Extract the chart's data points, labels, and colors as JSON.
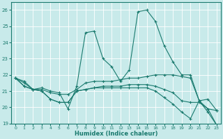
{
  "xlabel": "Humidex (Indice chaleur)",
  "ylabel": "",
  "bg_color": "#c8eaea",
  "line_color": "#1a7a6e",
  "grid_color": "#b0d8d8",
  "xlim": [
    -0.5,
    23.5
  ],
  "ylim": [
    19,
    26.5
  ],
  "yticks": [
    19,
    20,
    21,
    22,
    23,
    24,
    25,
    26
  ],
  "xticks": [
    0,
    1,
    2,
    3,
    4,
    5,
    6,
    7,
    8,
    9,
    10,
    11,
    12,
    13,
    14,
    15,
    16,
    17,
    18,
    19,
    20,
    21,
    22,
    23
  ],
  "lines": [
    {
      "x": [
        0,
        1,
        2,
        3,
        4,
        5,
        6,
        7,
        8,
        9,
        10,
        11,
        12,
        13,
        14,
        15,
        16,
        17,
        18,
        19,
        20,
        21,
        22,
        23
      ],
      "y": [
        21.8,
        21.6,
        21.1,
        21.2,
        21.0,
        20.9,
        19.9,
        21.3,
        24.6,
        24.7,
        23.0,
        22.5,
        21.6,
        22.3,
        25.9,
        26.0,
        25.3,
        23.8,
        22.8,
        22.0,
        22.0,
        20.4,
        19.7,
        18.9
      ]
    },
    {
      "x": [
        0,
        1,
        2,
        3,
        4,
        5,
        6,
        7,
        8,
        9,
        10,
        11,
        12,
        13,
        14,
        15,
        16,
        17,
        18,
        19,
        20,
        21,
        22,
        23
      ],
      "y": [
        21.8,
        21.5,
        21.1,
        21.1,
        20.9,
        20.8,
        20.8,
        21.1,
        21.5,
        21.6,
        21.6,
        21.6,
        21.7,
        21.8,
        21.8,
        21.9,
        22.0,
        22.0,
        22.0,
        21.9,
        21.8,
        20.4,
        20.5,
        19.8
      ]
    },
    {
      "x": [
        0,
        1,
        2,
        3,
        4,
        5,
        6,
        7,
        8,
        9,
        10,
        11,
        12,
        13,
        14,
        15,
        16,
        17,
        18,
        19,
        20,
        21,
        22,
        23
      ],
      "y": [
        21.8,
        21.3,
        21.1,
        21.0,
        20.5,
        20.3,
        20.3,
        21.0,
        21.1,
        21.2,
        21.3,
        21.3,
        21.3,
        21.4,
        21.4,
        21.4,
        21.3,
        21.1,
        20.9,
        20.4,
        20.3,
        20.3,
        19.9,
        19.8
      ]
    },
    {
      "x": [
        0,
        1,
        2,
        3,
        4,
        5,
        6,
        7,
        8,
        9,
        10,
        11,
        12,
        13,
        14,
        15,
        16,
        17,
        18,
        19,
        20,
        21,
        22,
        23
      ],
      "y": [
        21.8,
        21.3,
        21.1,
        21.0,
        20.5,
        20.3,
        20.3,
        21.0,
        21.1,
        21.2,
        21.2,
        21.2,
        21.2,
        21.2,
        21.2,
        21.2,
        21.0,
        20.6,
        20.2,
        19.7,
        19.3,
        20.4,
        19.9,
        18.9
      ]
    }
  ]
}
